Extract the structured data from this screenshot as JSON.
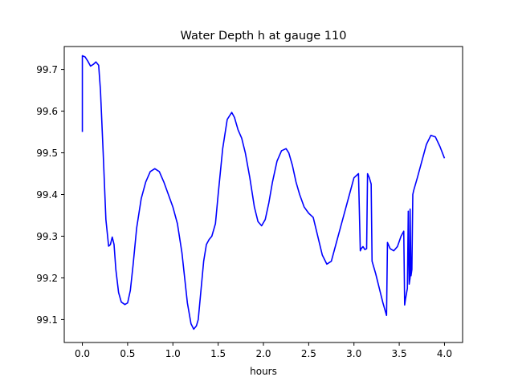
{
  "chart_data": {
    "type": "line",
    "title": "Water Depth h at gauge 110",
    "xlabel": "hours",
    "ylabel": "",
    "xlim": [
      -0.2,
      4.2
    ],
    "ylim": [
      99.045,
      99.755
    ],
    "xticks": [
      0.0,
      0.5,
      1.0,
      1.5,
      2.0,
      2.5,
      3.0,
      3.5,
      4.0
    ],
    "xtick_labels": [
      "0.0",
      "0.5",
      "1.0",
      "1.5",
      "2.0",
      "2.5",
      "3.0",
      "3.5",
      "4.0"
    ],
    "yticks": [
      99.1,
      99.2,
      99.3,
      99.4,
      99.5,
      99.6,
      99.7
    ],
    "ytick_labels": [
      "99.1",
      "99.2",
      "99.3",
      "99.4",
      "99.5",
      "99.6",
      "99.7"
    ],
    "grid": false,
    "series": [
      {
        "color": "#0000ff",
        "x": [
          0.0,
          0.0,
          0.03,
          0.06,
          0.09,
          0.12,
          0.15,
          0.18,
          0.2,
          0.23,
          0.26,
          0.29,
          0.31,
          0.33,
          0.35,
          0.37,
          0.4,
          0.43,
          0.47,
          0.5,
          0.53,
          0.56,
          0.6,
          0.65,
          0.7,
          0.75,
          0.8,
          0.85,
          0.9,
          0.95,
          1.0,
          1.05,
          1.1,
          1.13,
          1.16,
          1.2,
          1.23,
          1.26,
          1.28,
          1.31,
          1.34,
          1.37,
          1.4,
          1.43,
          1.47,
          1.5,
          1.55,
          1.6,
          1.65,
          1.68,
          1.72,
          1.76,
          1.8,
          1.85,
          1.9,
          1.94,
          1.98,
          2.02,
          2.06,
          2.1,
          2.15,
          2.2,
          2.25,
          2.28,
          2.32,
          2.36,
          2.4,
          2.45,
          2.5,
          2.55,
          2.6,
          2.65,
          2.7,
          2.75,
          2.8,
          2.85,
          2.9,
          2.95,
          3.0,
          3.05,
          3.07,
          3.08,
          3.1,
          3.12,
          3.14,
          3.15,
          3.17,
          3.19,
          3.2,
          3.24,
          3.28,
          3.32,
          3.36,
          3.37,
          3.4,
          3.44,
          3.48,
          3.52,
          3.55,
          3.56,
          3.57,
          3.59,
          3.6,
          3.61,
          3.62,
          3.62,
          3.63,
          3.64,
          3.65,
          3.66,
          3.7,
          3.75,
          3.8,
          3.85,
          3.9,
          3.95,
          4.0
        ],
        "y": [
          99.55,
          99.733,
          99.73,
          99.72,
          99.708,
          99.712,
          99.718,
          99.71,
          99.65,
          99.5,
          99.34,
          99.276,
          99.28,
          99.298,
          99.28,
          99.22,
          99.165,
          99.142,
          99.136,
          99.14,
          99.17,
          99.23,
          99.32,
          99.39,
          99.43,
          99.455,
          99.462,
          99.455,
          99.43,
          99.4,
          99.37,
          99.33,
          99.26,
          99.2,
          99.14,
          99.09,
          99.077,
          99.085,
          99.1,
          99.17,
          99.24,
          99.28,
          99.292,
          99.3,
          99.33,
          99.4,
          99.51,
          99.58,
          99.597,
          99.585,
          99.555,
          99.535,
          99.5,
          99.44,
          99.37,
          99.335,
          99.325,
          99.34,
          99.38,
          99.43,
          99.48,
          99.505,
          99.51,
          99.5,
          99.47,
          99.43,
          99.4,
          99.37,
          99.355,
          99.345,
          99.3,
          99.255,
          99.233,
          99.24,
          99.28,
          99.32,
          99.36,
          99.4,
          99.44,
          99.45,
          99.265,
          99.27,
          99.275,
          99.268,
          99.27,
          99.45,
          99.44,
          99.425,
          99.24,
          99.21,
          99.175,
          99.14,
          99.11,
          99.285,
          99.27,
          99.265,
          99.275,
          99.3,
          99.312,
          99.135,
          99.15,
          99.175,
          99.36,
          99.185,
          99.2,
          99.365,
          99.205,
          99.22,
          99.4,
          99.41,
          99.44,
          99.48,
          99.52,
          99.542,
          99.538,
          99.515,
          99.487
        ]
      }
    ]
  }
}
